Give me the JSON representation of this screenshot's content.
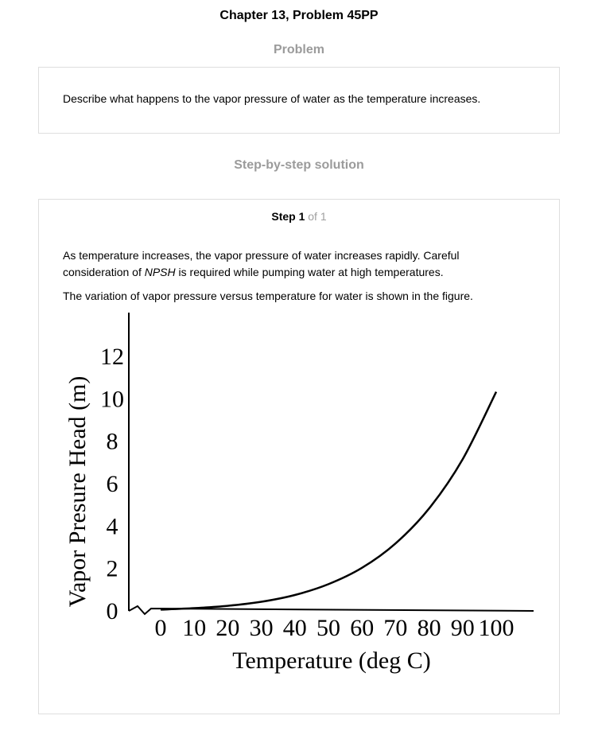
{
  "page": {
    "title": "Chapter 13, Problem 45PP"
  },
  "problem": {
    "heading": "Problem",
    "text": "Describe what happens to the vapor pressure of water as the temperature increases."
  },
  "solution": {
    "heading": "Step-by-step solution",
    "step": {
      "label": "Step 1",
      "of": "of 1"
    },
    "paragraph1": {
      "part1": "As temperature increases, the vapor pressure of water increases rapidly. Careful consideration of ",
      "emphasis": "NPSH",
      "part2": " is required while pumping water at high temperatures."
    },
    "paragraph2": "The variation of vapor pressure versus temperature for water is shown in the figure."
  },
  "chart_data": {
    "type": "line",
    "xlabel": "Temperature (deg C)",
    "ylabel": "Vapor Presure Head (m)",
    "x_ticks": [
      "0",
      "10",
      "20",
      "30",
      "40",
      "50",
      "60",
      "70",
      "80",
      "90",
      "100"
    ],
    "y_ticks": [
      "0",
      "2",
      "4",
      "6",
      "8",
      "10",
      "12"
    ],
    "xlim": [
      0,
      100
    ],
    "ylim": [
      0,
      12
    ],
    "grid": false,
    "axis_break": true,
    "series": [
      {
        "x": [
          0,
          10,
          20,
          30,
          40,
          50,
          60,
          70,
          80,
          90,
          100
        ],
        "y": [
          0.06,
          0.13,
          0.24,
          0.43,
          0.75,
          1.26,
          2.03,
          3.18,
          4.83,
          7.15,
          10.33
        ]
      }
    ]
  }
}
